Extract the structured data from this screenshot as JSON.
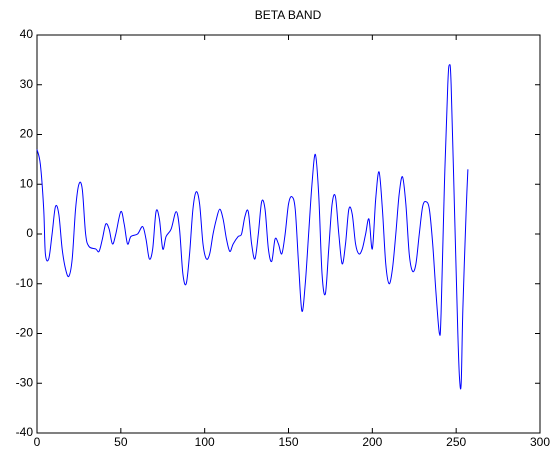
{
  "chart_data": {
    "type": "line",
    "title": "BETA BAND",
    "x": [
      0,
      2,
      4,
      5,
      7,
      9,
      11,
      13,
      15,
      17,
      19,
      21,
      23,
      25,
      27,
      29,
      31,
      35,
      37,
      39,
      41,
      43,
      45,
      47,
      50,
      52,
      54,
      56,
      60,
      63,
      65,
      67,
      69,
      71,
      73,
      75,
      77,
      80,
      83,
      85,
      87,
      89,
      91,
      93,
      95,
      97,
      99,
      101,
      103,
      105,
      107,
      109,
      111,
      113,
      115,
      117,
      120,
      122,
      124,
      126,
      128,
      130,
      132,
      134,
      136,
      138,
      140,
      142,
      144,
      146,
      148,
      150,
      152,
      154,
      156,
      158,
      160,
      162,
      164,
      166,
      168,
      170,
      172,
      174,
      176,
      178,
      180,
      182,
      184,
      186,
      188,
      190,
      192,
      194,
      196,
      198,
      200,
      202,
      204,
      206,
      208,
      210,
      212,
      214,
      216,
      218,
      220,
      222,
      224,
      226,
      228,
      230,
      232,
      234,
      236,
      238,
      240,
      241,
      243,
      245,
      246,
      247,
      249,
      251,
      252,
      253,
      254,
      256,
      257
    ],
    "series": [
      {
        "color": "#0000ff",
        "values": [
          17,
          14,
          5,
          -4,
          -5,
          0,
          5.5,
          4,
          -3,
          -7,
          -8.5,
          -5,
          5,
          10,
          9,
          0,
          -2.5,
          -3,
          -3.5,
          -1,
          2,
          1,
          -2,
          0,
          4.5,
          2,
          -2,
          -0.5,
          0,
          1.5,
          -1,
          -5,
          -3,
          4.5,
          3,
          -3,
          -0.5,
          1,
          4.5,
          1,
          -8,
          -10,
          -4,
          5,
          8.5,
          6,
          -2,
          -5,
          -4,
          0,
          3,
          5,
          3,
          -1,
          -3.5,
          -2,
          -0.5,
          0,
          3.5,
          4.5,
          -2,
          -5,
          0,
          6.5,
          5,
          -3,
          -5.5,
          -1,
          -2,
          -4,
          0,
          6,
          7.5,
          5,
          -6,
          -15.5,
          -10,
          0,
          10,
          16,
          8,
          -8,
          -12,
          -3,
          6,
          7.5,
          0,
          -6,
          -2,
          5,
          4,
          -2,
          -4,
          -3,
          0,
          3,
          -3,
          7,
          12.5,
          5,
          -6,
          -10,
          -7,
          0,
          8,
          11.5,
          6,
          -4,
          -7.5,
          -6,
          0,
          5.5,
          6.5,
          5,
          -2,
          -12,
          -20,
          -16,
          10,
          30,
          34,
          30,
          5,
          -20,
          -29,
          -30,
          -15,
          5,
          13
        ]
      }
    ],
    "xlim": [
      0,
      300
    ],
    "xticks": [
      0,
      50,
      100,
      150,
      200,
      250,
      300
    ],
    "ylim": [
      -40,
      40
    ],
    "yticks": [
      -40,
      -30,
      -20,
      -10,
      0,
      10,
      20,
      30,
      40
    ]
  }
}
